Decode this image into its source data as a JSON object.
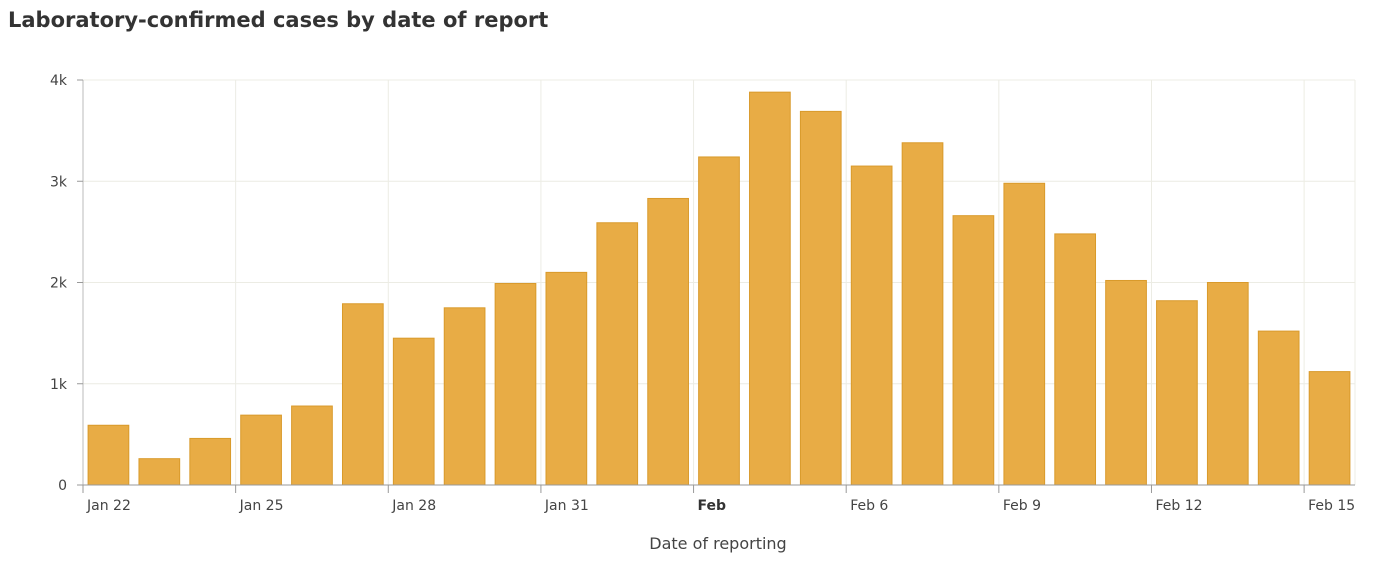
{
  "chart_data": {
    "type": "bar",
    "title": "Laboratory-confirmed cases by date of report",
    "xlabel": "Date of reporting",
    "ylabel": "",
    "ylim": [
      0,
      4000
    ],
    "yticks": [
      0,
      1000,
      2000,
      3000,
      4000
    ],
    "ytick_labels": [
      "0",
      "1k",
      "2k",
      "3k",
      "4k"
    ],
    "categories": [
      "Jan 22",
      "Jan 23",
      "Jan 24",
      "Jan 25",
      "Jan 26",
      "Jan 27",
      "Jan 28",
      "Jan 29",
      "Jan 30",
      "Jan 31",
      "Feb 1",
      "Feb 2",
      "Feb 3",
      "Feb 4",
      "Feb 5",
      "Feb 6",
      "Feb 7",
      "Feb 8",
      "Feb 9",
      "Feb 10",
      "Feb 11",
      "Feb 12",
      "Feb 13",
      "Feb 14",
      "Feb 15"
    ],
    "values": [
      590,
      260,
      460,
      690,
      780,
      1790,
      1450,
      1750,
      1990,
      2100,
      2590,
      2830,
      3240,
      3880,
      3690,
      3150,
      3380,
      2660,
      2980,
      2480,
      2020,
      1820,
      2000,
      1520,
      1120
    ],
    "xticks": [
      {
        "index": 0,
        "label": "Jan 22",
        "bold": false
      },
      {
        "index": 3,
        "label": "Jan 25",
        "bold": false
      },
      {
        "index": 6,
        "label": "Jan 28",
        "bold": false
      },
      {
        "index": 9,
        "label": "Jan 31",
        "bold": false
      },
      {
        "index": 12,
        "label": "Feb",
        "bold": true
      },
      {
        "index": 15,
        "label": "Feb 6",
        "bold": false
      },
      {
        "index": 18,
        "label": "Feb 9",
        "bold": false
      },
      {
        "index": 21,
        "label": "Feb 12",
        "bold": false
      },
      {
        "index": 24,
        "label": "Feb 15",
        "bold": false
      }
    ],
    "grid": true,
    "legend": "none",
    "bar_color": "#E8AC45",
    "bar_edge_color": "#D99A2B"
  }
}
